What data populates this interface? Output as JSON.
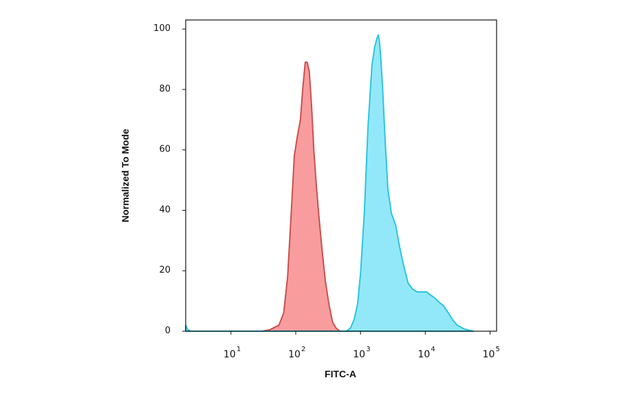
{
  "chart_data": {
    "type": "area",
    "title": "",
    "xlabel": "FITC-A",
    "ylabel": "Normalized To Mode",
    "x_scale": "log",
    "xlim": [
      2.0,
      126000
    ],
    "ylim": [
      0,
      103
    ],
    "x_ticks": [
      {
        "value": 10,
        "base": "10",
        "exp": "1"
      },
      {
        "value": 100,
        "base": "10",
        "exp": "2"
      },
      {
        "value": 1000,
        "base": "10",
        "exp": "3"
      },
      {
        "value": 10000,
        "base": "10",
        "exp": "4"
      },
      {
        "value": 100000,
        "base": "10",
        "exp": "5"
      }
    ],
    "y_ticks": [
      {
        "value": 0,
        "label": "0"
      },
      {
        "value": 20,
        "label": "20"
      },
      {
        "value": 40,
        "label": "40"
      },
      {
        "value": 60,
        "label": "60"
      },
      {
        "value": 80,
        "label": "80"
      },
      {
        "value": 100,
        "label": "100"
      }
    ],
    "grid": false,
    "legend": "none",
    "series": [
      {
        "fill": "#f89c9e",
        "stroke": "#c8504f",
        "points": [
          [
            30,
            0
          ],
          [
            40,
            0.5
          ],
          [
            55,
            2
          ],
          [
            65,
            6
          ],
          [
            75,
            18
          ],
          [
            85,
            39
          ],
          [
            95,
            58
          ],
          [
            105,
            64
          ],
          [
            118,
            70
          ],
          [
            128,
            80
          ],
          [
            140,
            89
          ],
          [
            150,
            89
          ],
          [
            162,
            86
          ],
          [
            175,
            75
          ],
          [
            190,
            60
          ],
          [
            208,
            48
          ],
          [
            228,
            38
          ],
          [
            252,
            28
          ],
          [
            285,
            17
          ],
          [
            325,
            9
          ],
          [
            370,
            3
          ],
          [
            420,
            1
          ],
          [
            480,
            0
          ]
        ]
      },
      {
        "fill": "#92e8f8",
        "stroke": "#2ec4de",
        "points": [
          [
            2.0,
            2
          ],
          [
            2.15,
            0.5
          ],
          [
            2.4,
            0
          ],
          [
            600,
            0
          ],
          [
            700,
            1
          ],
          [
            800,
            4
          ],
          [
            900,
            9
          ],
          [
            1000,
            19
          ],
          [
            1150,
            40
          ],
          [
            1300,
            67
          ],
          [
            1500,
            88
          ],
          [
            1650,
            94
          ],
          [
            1800,
            97
          ],
          [
            1880,
            98
          ],
          [
            1960,
            96
          ],
          [
            2050,
            91
          ],
          [
            2200,
            80
          ],
          [
            2400,
            63
          ],
          [
            2650,
            47
          ],
          [
            3000,
            39
          ],
          [
            3500,
            35
          ],
          [
            4000,
            28
          ],
          [
            4600,
            22
          ],
          [
            5400,
            16
          ],
          [
            6300,
            14
          ],
          [
            7500,
            13
          ],
          [
            9000,
            13
          ],
          [
            10500,
            13
          ],
          [
            12000,
            12
          ],
          [
            14000,
            11
          ],
          [
            16500,
            9.5
          ],
          [
            19000,
            8.5
          ],
          [
            22000,
            6.5
          ],
          [
            26000,
            4
          ],
          [
            31000,
            2
          ],
          [
            40000,
            0.7
          ],
          [
            55000,
            0
          ]
        ]
      }
    ]
  }
}
